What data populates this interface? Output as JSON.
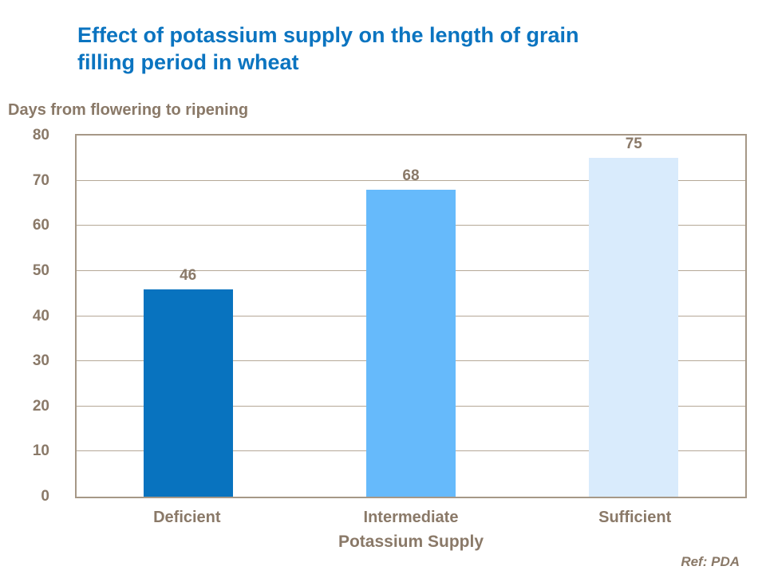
{
  "slide": {
    "title_lines": [
      "Effect of potassium supply on the length of grain",
      "filling period in wheat"
    ],
    "ref_label": "Ref: PDA"
  },
  "colors": {
    "title_blue": "#0B74C0",
    "label_brown": "#8A7968",
    "plot_border": "#A69887",
    "gridline": "#B5A897",
    "background": "#FFFFFF"
  },
  "chart_data": {
    "type": "bar",
    "title": "Effect of potassium supply on the length of grain filling period in wheat",
    "categories": [
      "Deficient",
      "Intermediate",
      "Sufficient"
    ],
    "values": [
      46,
      68,
      75
    ],
    "bar_colors": [
      "#0873BF",
      "#66BAFB",
      "#D9EBFC"
    ],
    "xlabel": "Potassium Supply",
    "ylabel": "Days from flowering to ripening",
    "ylim": [
      0,
      80
    ],
    "ytick_step": 10,
    "yticks": [
      0,
      10,
      20,
      30,
      40,
      50,
      60,
      70,
      80
    ],
    "grid": "horizontal",
    "legend": "none",
    "footnote": "Ref: PDA"
  }
}
